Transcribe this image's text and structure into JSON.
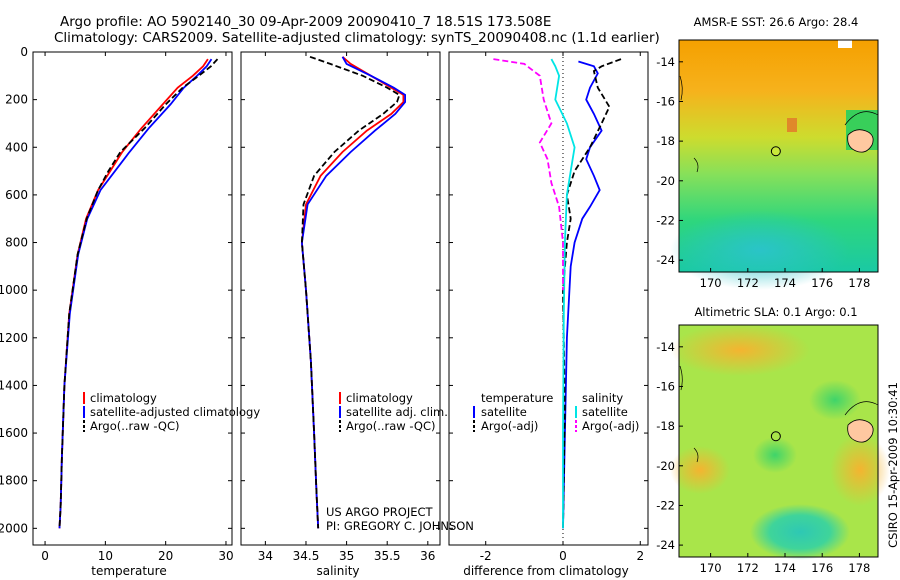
{
  "header": {
    "line1": "Argo profile: AO 5902140_30 09-Apr-2009 20090410_7 18.51S 173.508E",
    "line2": "Climatology: CARS2009. Satellite-adjusted climatology: synTS_20090408.nc (1.1d earlier)"
  },
  "side_label": "CSIRO 15-Apr-2009 10:30:41",
  "project": {
    "line1": "US ARGO PROJECT",
    "line2": "PI: GREGORY C. JOHNSON"
  },
  "colors": {
    "climatology": "#ff0000",
    "satellite": "#0000ff",
    "argo": "#000000",
    "sat_salinity": "#00e5e5",
    "argo_salinity": "#ff00ff"
  },
  "chart_data": [
    {
      "type": "line",
      "id": "temperature",
      "xlabel": "temperature",
      "ylabel": "",
      "xlim": [
        -2,
        31
      ],
      "ylim": [
        2070,
        0
      ],
      "yreversed": true,
      "xticks": [
        0,
        10,
        20,
        30
      ],
      "yticks": [
        0,
        200,
        400,
        600,
        800,
        1000,
        1200,
        1400,
        1600,
        1800,
        2000
      ],
      "legend": [
        "climatology",
        "satellite-adjusted climatology",
        "Argo(..raw -QC)"
      ],
      "series": [
        {
          "name": "climatology",
          "style": "solid",
          "color": "#ff0000",
          "x": [
            27.0,
            26.2,
            24.5,
            22.0,
            19.5,
            16.0,
            12.8,
            10.8,
            8.8,
            6.8,
            5.4,
            4.0,
            3.2,
            2.8,
            2.6,
            2.4
          ],
          "y": [
            30,
            60,
            100,
            150,
            220,
            320,
            420,
            500,
            580,
            700,
            850,
            1100,
            1400,
            1700,
            1900,
            2000
          ]
        },
        {
          "name": "satellite-adjusted climatology",
          "style": "solid",
          "color": "#0000ff",
          "x": [
            27.6,
            26.8,
            25.2,
            23.0,
            20.8,
            17.2,
            14.0,
            11.6,
            9.2,
            7.0,
            5.5,
            4.1,
            3.2,
            2.8,
            2.6,
            2.4
          ],
          "y": [
            30,
            60,
            100,
            150,
            220,
            320,
            420,
            500,
            580,
            700,
            850,
            1100,
            1400,
            1700,
            1900,
            2000
          ]
        },
        {
          "name": "Argo(..raw -QC)",
          "style": "dashed",
          "color": "#000000",
          "x": [
            28.6,
            27.5,
            25.5,
            22.8,
            20.0,
            16.5,
            12.5,
            10.5,
            8.8,
            6.9,
            5.4,
            4.0,
            3.2,
            2.8,
            2.6,
            2.4
          ],
          "y": [
            30,
            60,
            100,
            150,
            220,
            320,
            420,
            500,
            580,
            700,
            850,
            1100,
            1400,
            1700,
            1900,
            2000
          ]
        }
      ]
    },
    {
      "type": "line",
      "id": "salinity",
      "xlabel": "salinity",
      "ylabel": "",
      "xlim": [
        33.7,
        36.15
      ],
      "ylim": [
        2070,
        0
      ],
      "yreversed": true,
      "xticks": [
        34,
        34.5,
        35,
        35.5,
        36
      ],
      "xticklabels": [
        "34",
        "34.5",
        "35",
        "35.5",
        "36"
      ],
      "legend": [
        "climatology",
        "satellite adj. clim.",
        "Argo(..raw -QC)"
      ],
      "series": [
        {
          "name": "climatology",
          "style": "solid",
          "color": "#ff0000",
          "x": [
            34.95,
            35.05,
            35.3,
            35.55,
            35.7,
            35.7,
            35.55,
            35.25,
            34.95,
            34.68,
            34.5,
            34.45,
            34.5,
            34.56,
            34.6,
            34.63,
            34.65
          ],
          "y": [
            20,
            50,
            100,
            150,
            180,
            210,
            260,
            330,
            420,
            520,
            640,
            800,
            1000,
            1300,
            1600,
            1850,
            2000
          ]
        },
        {
          "name": "satellite adj. clim.",
          "style": "solid",
          "color": "#0000ff",
          "x": [
            34.95,
            35.0,
            35.3,
            35.58,
            35.72,
            35.72,
            35.6,
            35.35,
            35.05,
            34.75,
            34.52,
            34.45,
            34.5,
            34.56,
            34.6,
            34.63,
            34.65
          ],
          "y": [
            20,
            50,
            100,
            150,
            180,
            210,
            260,
            330,
            420,
            520,
            640,
            800,
            1000,
            1300,
            1600,
            1850,
            2000
          ]
        },
        {
          "name": "Argo(..raw -QC)",
          "style": "dashed",
          "color": "#000000",
          "x": [
            34.55,
            34.8,
            35.2,
            35.5,
            35.65,
            35.62,
            35.45,
            35.15,
            34.85,
            34.6,
            34.47,
            34.45,
            34.5,
            34.56,
            34.6,
            34.63,
            34.65
          ],
          "y": [
            20,
            50,
            100,
            150,
            180,
            210,
            260,
            330,
            420,
            520,
            640,
            800,
            1000,
            1300,
            1600,
            1850,
            2000
          ]
        }
      ]
    },
    {
      "type": "line",
      "id": "difference",
      "xlabel": "difference from climatology",
      "ylabel": "",
      "xlim": [
        -2.95,
        2.2
      ],
      "ylim": [
        2070,
        0
      ],
      "yreversed": true,
      "xticks": [
        -2,
        0,
        2
      ],
      "legend_titles": [
        "temperature",
        "salinity"
      ],
      "legend": [
        "satellite",
        "Argo(-adj)",
        "satellite",
        "Argo(-adj)"
      ],
      "series": [
        {
          "name": "temperature satellite",
          "style": "solid",
          "color": "#0000ff",
          "x": [
            0.4,
            0.8,
            0.9,
            0.7,
            0.6,
            0.8,
            1.0,
            0.7,
            0.6,
            0.8,
            0.95,
            0.7,
            0.5,
            0.3,
            0.2,
            0.1,
            0.05,
            0.0
          ],
          "y": [
            40,
            60,
            90,
            150,
            200,
            260,
            330,
            400,
            450,
            520,
            580,
            650,
            700,
            800,
            900,
            1200,
            1600,
            2000
          ]
        },
        {
          "name": "temperature Argo(-adj)",
          "style": "dashed",
          "color": "#000000",
          "x": [
            1.5,
            1.0,
            0.8,
            0.9,
            1.2,
            1.0,
            0.7,
            0.3,
            0.1,
            0.2,
            0.1,
            0.0,
            0.05,
            0.0
          ],
          "y": [
            30,
            60,
            80,
            150,
            230,
            300,
            400,
            500,
            600,
            700,
            800,
            1000,
            1500,
            2000
          ]
        },
        {
          "name": "salinity satellite",
          "style": "solid",
          "color": "#00e5e5",
          "x": [
            -0.3,
            -0.2,
            -0.1,
            -0.2,
            0.1,
            0.3,
            0.2,
            0.1,
            0.05,
            0.02,
            0.0,
            0.0
          ],
          "y": [
            30,
            60,
            100,
            200,
            300,
            400,
            500,
            600,
            800,
            1100,
            1600,
            2000
          ]
        },
        {
          "name": "salinity Argo(-adj)",
          "style": "dashed",
          "color": "#ff00ff",
          "x": [
            -1.8,
            -1.0,
            -0.6,
            -0.5,
            -0.3,
            -0.6,
            -0.4,
            -0.3,
            -0.1,
            0.0,
            0.0
          ],
          "y": [
            30,
            50,
            100,
            200,
            300,
            380,
            450,
            550,
            650,
            800,
            1000
          ]
        }
      ]
    },
    {
      "type": "heatmap",
      "id": "sst-map",
      "title": "AMSR-E SST: 26.6 Argo: 28.4",
      "xlim": [
        168.3,
        179.0
      ],
      "ylim": [
        -24.6,
        -12.9
      ],
      "xticks": [
        170,
        172,
        174,
        176,
        178
      ],
      "yticks": [
        -14,
        -16,
        -18,
        -20,
        -22,
        -24
      ],
      "argo_position": {
        "lon": 173.508,
        "lat": -18.51
      }
    },
    {
      "type": "heatmap",
      "id": "sla-map",
      "title": "Altimetric SLA: 0.1 Argo: 0.1",
      "xlim": [
        168.3,
        179.0
      ],
      "ylim": [
        -24.6,
        -12.9
      ],
      "xticks": [
        170,
        172,
        174,
        176,
        178
      ],
      "yticks": [
        -14,
        -16,
        -18,
        -20,
        -22,
        -24
      ],
      "argo_position": {
        "lon": 173.508,
        "lat": -18.51
      }
    }
  ]
}
